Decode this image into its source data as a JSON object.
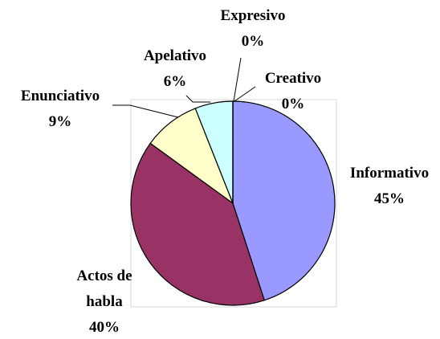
{
  "chart_data": {
    "type": "pie",
    "categories": [
      "Informativo",
      "Actos de habla",
      "Enunciativo",
      "Apelativo",
      "Creativo",
      "Expresivo"
    ],
    "values": [
      45,
      40,
      9,
      6,
      0,
      0
    ],
    "value_labels": [
      "45%",
      "40%",
      "9%",
      "6%",
      "0%",
      "0%"
    ],
    "colors": [
      "#9999ff",
      "#993366",
      "#ffffcc",
      "#ccffff",
      "#ffffff",
      "#ffffff"
    ]
  }
}
